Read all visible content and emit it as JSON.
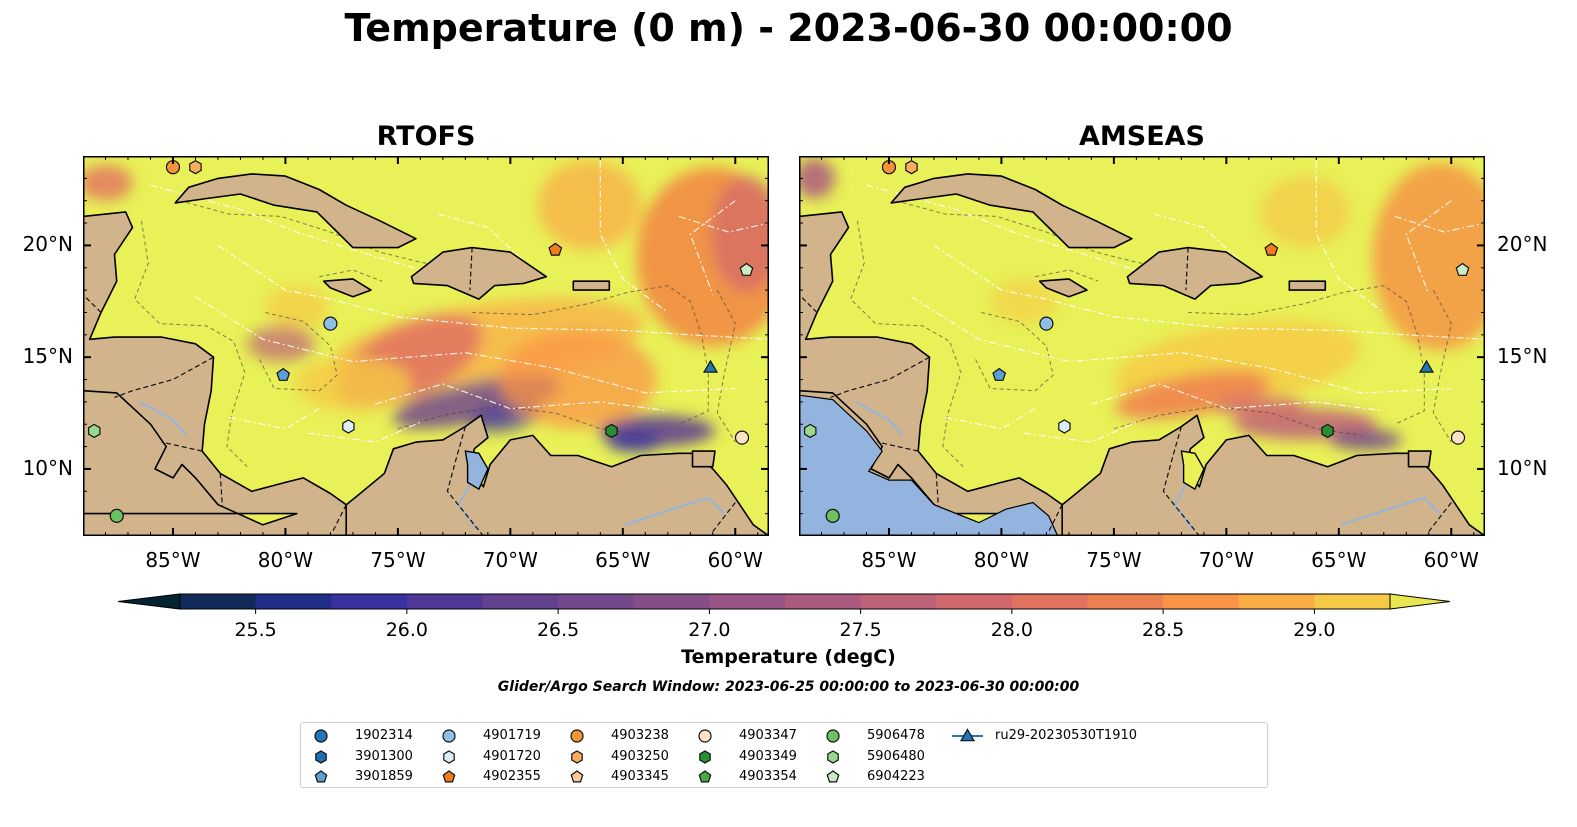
{
  "title": "Temperature (0 m) - 2023-06-30 00:00:00",
  "panels": [
    {
      "title": "RTOFS"
    },
    {
      "title": "AMSEAS"
    }
  ],
  "axes": {
    "lon_ticks": [
      -85,
      -80,
      -75,
      -70,
      -65,
      -60
    ],
    "lon_labels": [
      "85°W",
      "80°W",
      "75°W",
      "70°W",
      "65°W",
      "60°W"
    ],
    "lat_ticks": [
      20,
      15,
      10
    ],
    "lat_labels": [
      "20°N",
      "15°N",
      "10°N"
    ],
    "extent": {
      "lon": [
        -89,
        -58.5
      ],
      "lat": [
        7,
        24
      ]
    }
  },
  "colorbar": {
    "label": "Temperature (degC)",
    "tick_values": [
      25.5,
      26.0,
      26.5,
      27.0,
      27.5,
      28.0,
      28.5,
      29.0
    ],
    "tick_labels": [
      "25.5",
      "26.0",
      "26.5",
      "27.0",
      "27.5",
      "28.0",
      "28.5",
      "29.0"
    ],
    "range": [
      25.25,
      29.25
    ],
    "extend": "both",
    "colors": [
      "#032333",
      "#102b5a",
      "#202e8a",
      "#3a31a0",
      "#503899",
      "#62428f",
      "#73498b",
      "#854e88",
      "#985585",
      "#ab5b7f",
      "#be6278",
      "#d1686d",
      "#e27260",
      "#ef8050",
      "#f99446",
      "#fbac44",
      "#f6c945",
      "#e9e751"
    ]
  },
  "search_window": "Glider/Argo Search Window: 2023-06-25 00:00:00 to 2023-06-30 00:00:00",
  "platforms": [
    {
      "id": "1902314",
      "marker": "circle",
      "color": "#1f77b4"
    },
    {
      "id": "3901300",
      "marker": "hexagon",
      "color": "#1f6fb0"
    },
    {
      "id": "3901859",
      "marker": "pentagon",
      "color": "#5b9fd6"
    },
    {
      "id": "4901719",
      "marker": "circle",
      "color": "#8bbfe6"
    },
    {
      "id": "4901720",
      "marker": "hexagon",
      "color": "#dcedf8"
    },
    {
      "id": "4902355",
      "marker": "pentagon",
      "color": "#f07c1c"
    },
    {
      "id": "4903238",
      "marker": "circle",
      "color": "#f5933a"
    },
    {
      "id": "4903250",
      "marker": "hexagon",
      "color": "#f8ac5e"
    },
    {
      "id": "4903345",
      "marker": "pentagon",
      "color": "#fbc995"
    },
    {
      "id": "4903347",
      "marker": "circle",
      "color": "#fde3c8"
    },
    {
      "id": "4903349",
      "marker": "hexagon",
      "color": "#2a8f33"
    },
    {
      "id": "4903354",
      "marker": "pentagon",
      "color": "#47ab43"
    },
    {
      "id": "5906478",
      "marker": "circle",
      "color": "#6cc160"
    },
    {
      "id": "5906480",
      "marker": "hexagon",
      "color": "#98d98f"
    },
    {
      "id": "6904223",
      "marker": "pentagon",
      "color": "#c9ecc2"
    },
    {
      "id": "ru29-20230530T1910",
      "marker": "triangle",
      "color": "#1f77b4"
    }
  ],
  "observations": [
    {
      "id": "4903238",
      "lon": -85.0,
      "lat": 23.5
    },
    {
      "id": "4903250",
      "lon": -84.0,
      "lat": 23.5
    },
    {
      "id": "4902355",
      "lon": -68.0,
      "lat": 19.8
    },
    {
      "id": "6904223",
      "lon": -59.5,
      "lat": 18.9
    },
    {
      "id": "4901719",
      "lon": -78.0,
      "lat": 16.5
    },
    {
      "id": "3901859",
      "lon": -80.1,
      "lat": 14.2
    },
    {
      "id": "ru29-20230530T1910",
      "lon": -61.1,
      "lat": 14.5
    },
    {
      "id": "5906480",
      "lon": -88.5,
      "lat": 11.7
    },
    {
      "id": "4901720",
      "lon": -77.2,
      "lat": 11.9
    },
    {
      "id": "4903349",
      "lon": -65.5,
      "lat": 11.7
    },
    {
      "id": "4903347",
      "lon": -59.7,
      "lat": 11.4
    },
    {
      "id": "5906478",
      "lon": -87.5,
      "lat": 7.9
    }
  ]
}
